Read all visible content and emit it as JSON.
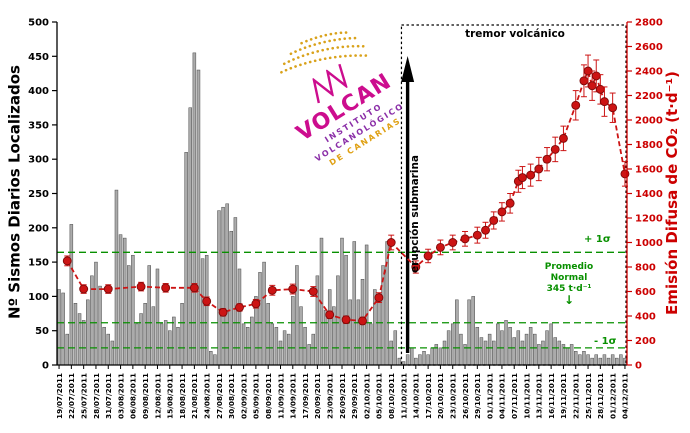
{
  "logo": {
    "acronym": "VOLCAN",
    "line1": "INSTITUTO",
    "line2": "VOLCANOLÓGICO",
    "line3": "DE CANARIAS",
    "magenta": "#cc0d8e",
    "purple": "#8b2fa8",
    "gold": "#d9a21b"
  },
  "chart_data": {
    "type": "bar+line",
    "bars": {
      "name": "Nº Sismos Diarios Localizados",
      "color": "#ababab",
      "edge": "#4a4a4a",
      "values": [
        110,
        105,
        45,
        205,
        90,
        75,
        65,
        95,
        130,
        150,
        115,
        55,
        45,
        35,
        255,
        190,
        185,
        145,
        160,
        60,
        75,
        90,
        145,
        85,
        140,
        60,
        65,
        50,
        70,
        55,
        90,
        310,
        375,
        455,
        430,
        155,
        160,
        20,
        15,
        225,
        230,
        235,
        195,
        215,
        140,
        60,
        55,
        70,
        100,
        135,
        150,
        90,
        60,
        55,
        35,
        50,
        45,
        100,
        145,
        85,
        55,
        30,
        45,
        130,
        185,
        80,
        110,
        85,
        130,
        185,
        160,
        95,
        180,
        95,
        125,
        175,
        60,
        110,
        95,
        145,
        180,
        35,
        50,
        10,
        5,
        15,
        25,
        10,
        15,
        20,
        15,
        25,
        30,
        25,
        35,
        50,
        60,
        95,
        45,
        30,
        95,
        100,
        55,
        40,
        35,
        45,
        35,
        60,
        50,
        65,
        55,
        40,
        50,
        35,
        45,
        55,
        45,
        30,
        35,
        50,
        60,
        40,
        35,
        30,
        25,
        30,
        20,
        15,
        20,
        15,
        10,
        15,
        10,
        15,
        10,
        15,
        10,
        15,
        10
      ]
    },
    "line": {
      "name": "Emisión Difusa de CO₂ (t·d⁻¹)",
      "color": "#cc1414",
      "edge": "#7d0a0a",
      "points": [
        [
          2,
          850,
          40
        ],
        [
          6,
          620,
          35
        ],
        [
          12,
          620,
          35
        ],
        [
          20,
          640,
          35
        ],
        [
          26,
          630,
          35
        ],
        [
          33,
          630,
          35
        ],
        [
          36,
          520,
          35
        ],
        [
          40,
          430,
          30
        ],
        [
          44,
          470,
          30
        ],
        [
          48,
          500,
          35
        ],
        [
          52,
          610,
          40
        ],
        [
          57,
          620,
          40
        ],
        [
          62,
          600,
          40
        ],
        [
          66,
          410,
          30
        ],
        [
          70,
          370,
          30
        ],
        [
          74,
          360,
          30
        ],
        [
          78,
          550,
          40
        ],
        [
          81,
          1000,
          60
        ],
        [
          87,
          800,
          50
        ],
        [
          90,
          890,
          55
        ],
        [
          93,
          960,
          60
        ],
        [
          96,
          1000,
          60
        ],
        [
          99,
          1030,
          60
        ],
        [
          102,
          1060,
          65
        ],
        [
          104,
          1100,
          65
        ],
        [
          106,
          1180,
          70
        ],
        [
          108,
          1250,
          75
        ],
        [
          110,
          1320,
          80
        ],
        [
          112,
          1500,
          90
        ],
        [
          113,
          1530,
          90
        ],
        [
          115,
          1550,
          90
        ],
        [
          117,
          1600,
          95
        ],
        [
          119,
          1680,
          95
        ],
        [
          121,
          1760,
          100
        ],
        [
          123,
          1850,
          100
        ],
        [
          126,
          2120,
          120
        ],
        [
          128,
          2320,
          130
        ],
        [
          129,
          2400,
          130
        ],
        [
          130,
          2280,
          120
        ],
        [
          131,
          2360,
          130
        ],
        [
          132,
          2250,
          120
        ],
        [
          133,
          2150,
          120
        ],
        [
          135,
          2100,
          120
        ],
        [
          138,
          1560,
          100
        ]
      ]
    },
    "left_axis": {
      "label": "Nº Sismos Diarios Localizados",
      "min": 0,
      "max": 500,
      "tick_step": 50,
      "color": "#000000"
    },
    "right_axis": {
      "label": "Emisión Difusa de CO₂ (t·d⁻¹)",
      "min": 0,
      "max": 2800,
      "tick_step": 200,
      "color": "#cc0000"
    },
    "x_axis": {
      "start_date": "19/07/2011",
      "end_date": "04/12/2011",
      "tick_interval_days": 3,
      "tick_labels": [
        "19/07/2011",
        "22/07/2011",
        "25/07/2011",
        "28/07/2011",
        "31/07/2011",
        "03/08/2011",
        "06/08/2011",
        "09/08/2011",
        "12/08/2011",
        "15/08/2011",
        "18/08/2011",
        "21/08/2011",
        "24/08/2011",
        "27/08/2011",
        "30/08/2011",
        "02/09/2011",
        "05/09/2011",
        "08/09/2011",
        "11/09/2011",
        "14/09/2011",
        "17/09/2011",
        "20/09/2011",
        "23/09/2011",
        "26/09/2011",
        "29/09/2011",
        "02/10/2011",
        "05/10/2011",
        "08/10/2011",
        "11/10/2011",
        "14/10/2011",
        "17/10/2011",
        "20/10/2011",
        "23/10/2011",
        "26/10/2011",
        "29/10/2011",
        "01/11/2011",
        "04/11/2011",
        "07/11/2011",
        "10/11/2011",
        "13/11/2011",
        "16/11/2011",
        "19/11/2011",
        "22/11/2011",
        "25/11/2011",
        "28/11/2011",
        "01/12/2011",
        "04/12/2011"
      ]
    },
    "reference": {
      "mean": 345,
      "plus_sigma": 920,
      "minus_sigma": 140,
      "color": "#089000"
    },
    "events": {
      "tremor_start_day_index": 84,
      "eruption_day_index": 85
    },
    "annotations": {
      "tremor": "tremor volcánico",
      "eruption": "erupción submarina",
      "plus_sigma": "+ 1σ",
      "minus_sigma": "- 1σ",
      "promedio": [
        "Promedio",
        "Normal",
        "345 t·d⁻¹"
      ],
      "arrow_down": "↓"
    }
  }
}
